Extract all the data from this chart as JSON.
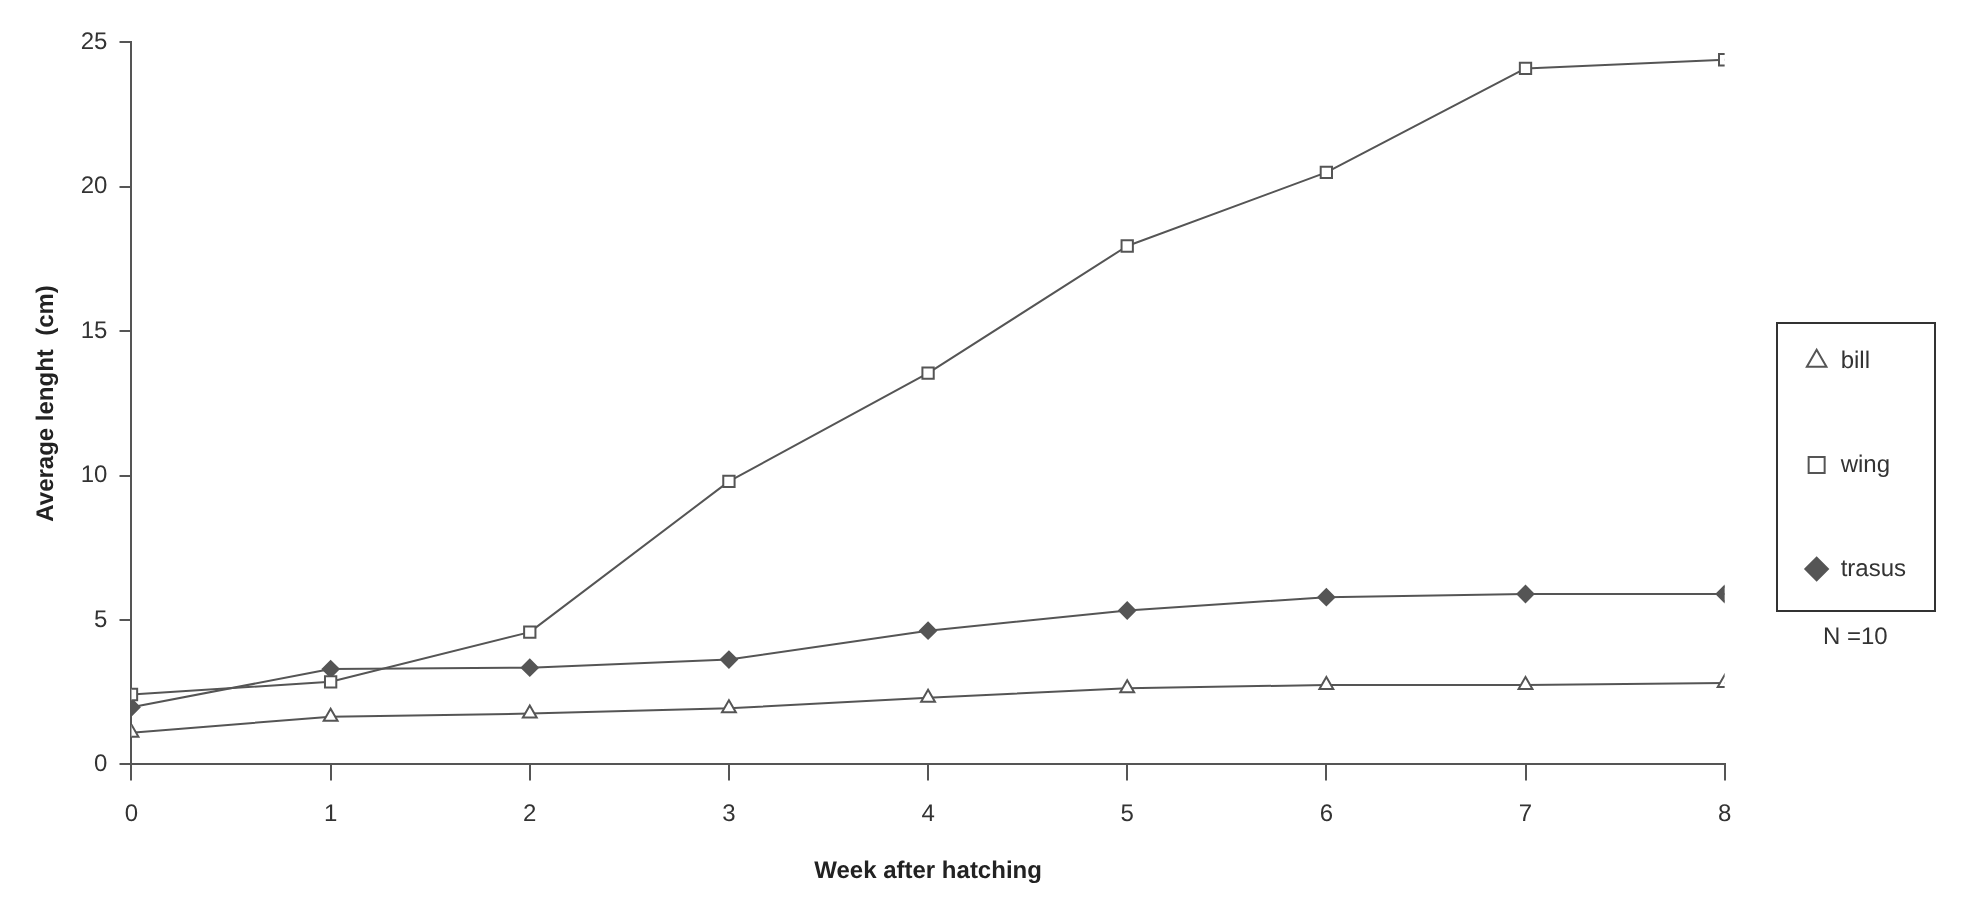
{
  "chart_data": {
    "type": "line",
    "xlabel": "Week after hatching",
    "ylabel": "Average lenght  (cm)",
    "x": [
      0,
      1,
      2,
      3,
      4,
      5,
      6,
      7,
      8
    ],
    "series": [
      {
        "name": "bill",
        "color": "#555555",
        "marker": "triangle",
        "values": [
          1.1,
          1.65,
          1.76,
          1.94,
          2.31,
          2.64,
          2.75,
          2.75,
          2.82
        ]
      },
      {
        "name": "wing",
        "color": "#555555",
        "marker": "square",
        "values": [
          2.42,
          2.86,
          4.58,
          9.8,
          13.55,
          17.95,
          20.5,
          24.1,
          24.4
        ]
      },
      {
        "name": "trasus",
        "color": "#555555",
        "marker": "diamond",
        "values": [
          1.98,
          3.3,
          3.35,
          3.63,
          4.63,
          5.33,
          5.79,
          5.9,
          5.9
        ]
      }
    ],
    "xlim": [
      0,
      8
    ],
    "xticks": [
      0,
      1,
      2,
      3,
      4,
      5,
      6,
      7,
      8
    ],
    "ylim": [
      0,
      25
    ],
    "yticks": [
      0,
      5,
      10,
      15,
      20,
      25
    ],
    "grid": false,
    "legend": "right",
    "line_style": "solid",
    "annotations": [
      "N =10"
    ]
  }
}
